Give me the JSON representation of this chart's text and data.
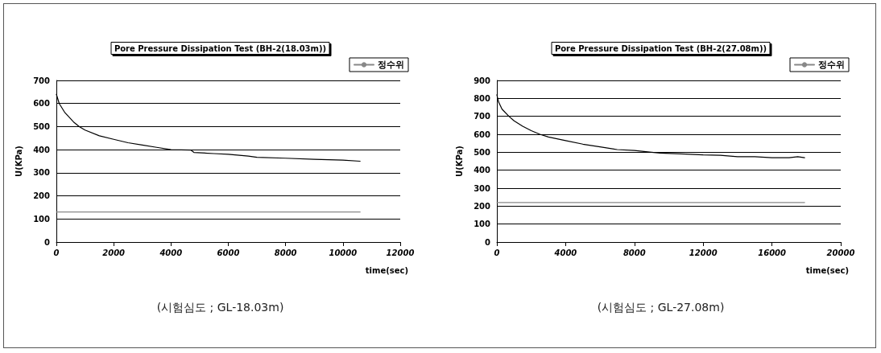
{
  "chart_data": [
    {
      "type": "line",
      "title": "Pore Pressure Dissipation Test (BH-2(18.03m))",
      "xlabel": "time(sec)",
      "ylabel": "U(KPa)",
      "xlim": [
        0,
        12000
      ],
      "xticks": [
        0,
        2000,
        4000,
        6000,
        8000,
        10000,
        12000
      ],
      "ylim": [
        0,
        700
      ],
      "yticks": [
        0,
        100,
        200,
        300,
        400,
        500,
        600,
        700
      ],
      "grid": "y",
      "legend": "top right",
      "marker": "none",
      "series": [
        {
          "color": "#000000",
          "x": [
            0,
            100,
            300,
            600,
            800,
            1000,
            1500,
            2000,
            2500,
            3000,
            3500,
            4000,
            4700,
            4800,
            5500,
            6000,
            6700,
            7000,
            8000,
            9000,
            10000,
            10600
          ],
          "values": [
            640,
            600,
            560,
            520,
            500,
            485,
            460,
            445,
            430,
            420,
            410,
            400,
            398,
            388,
            383,
            380,
            372,
            367,
            363,
            358,
            355,
            350
          ]
        },
        {
          "name": "정수위",
          "color": "#888888",
          "x": [
            0,
            10600
          ],
          "values": [
            130,
            130
          ]
        }
      ],
      "annotations": [
        "(시험심도 ; GL-18.03m)"
      ]
    },
    {
      "type": "line",
      "title": "Pore Pressure Dissipation Test (BH-2(27.08m))",
      "xlabel": "time(sec)",
      "ylabel": "U(KPa)",
      "xlim": [
        0,
        20000
      ],
      "xticks": [
        0,
        4000,
        8000,
        12000,
        16000,
        20000
      ],
      "ylim": [
        0,
        900
      ],
      "yticks": [
        0,
        100,
        200,
        300,
        400,
        500,
        600,
        700,
        800,
        900
      ],
      "grid": "y",
      "legend": "top right",
      "marker": "none",
      "series": [
        {
          "color": "#000000",
          "x": [
            0,
            100,
            300,
            700,
            1000,
            1500,
            2000,
            2500,
            3000,
            4000,
            5000,
            6000,
            7000,
            8000,
            9000,
            9500,
            11000,
            12000,
            13000,
            14000,
            15000,
            16000,
            17000,
            17500,
            17900
          ],
          "values": [
            820,
            780,
            740,
            700,
            675,
            645,
            620,
            600,
            585,
            565,
            545,
            530,
            515,
            510,
            500,
            495,
            490,
            485,
            483,
            475,
            475,
            470,
            470,
            475,
            470
          ]
        },
        {
          "name": "정수위",
          "color": "#888888",
          "x": [
            0,
            17900
          ],
          "values": [
            220,
            220
          ]
        }
      ],
      "annotations": [
        "(시험심도 ; GL-27.08m)"
      ]
    }
  ]
}
